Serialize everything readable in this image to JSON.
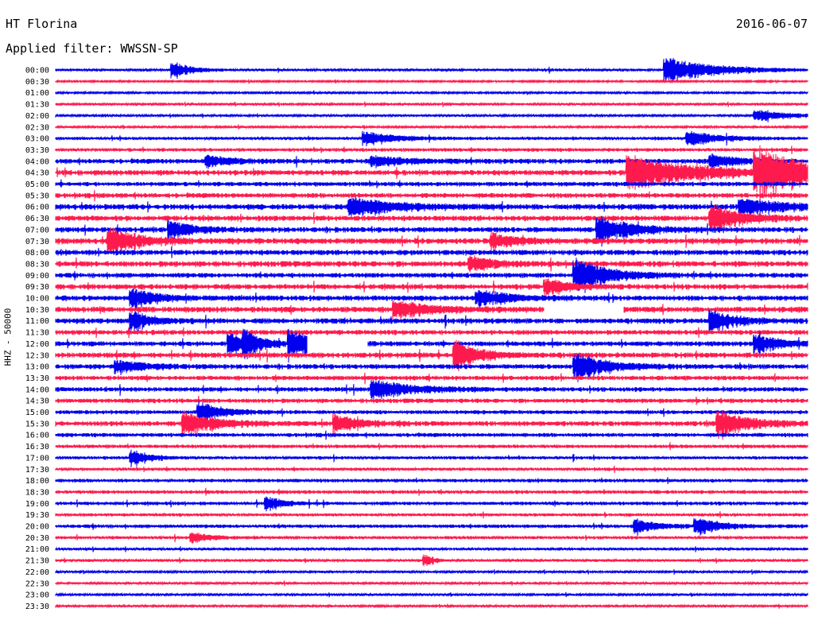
{
  "header": {
    "station": "HT Florina",
    "date": "2016-06-07",
    "filter": "Applied filter: WWSSN-SP"
  },
  "chart_data": {
    "type": "line",
    "title": "HT Florina",
    "ylabel": "HHZ - 50000",
    "trace_colors": [
      "#0000ee",
      "#ff1a4d"
    ],
    "rows": [
      "00:00",
      "00:30",
      "01:00",
      "01:30",
      "02:00",
      "02:30",
      "03:00",
      "03:30",
      "04:00",
      "04:30",
      "05:00",
      "05:30",
      "06:00",
      "06:30",
      "07:00",
      "07:30",
      "08:00",
      "08:30",
      "09:00",
      "09:30",
      "10:00",
      "10:30",
      "11:00",
      "11:30",
      "12:00",
      "12:30",
      "13:00",
      "13:30",
      "14:00",
      "14:30",
      "15:00",
      "15:30",
      "16:00",
      "16:30",
      "17:00",
      "17:30",
      "18:00",
      "18:30",
      "19:00",
      "19:30",
      "20:00",
      "20:30",
      "21:00",
      "21:30",
      "22:00",
      "22:30",
      "23:00",
      "23:30"
    ],
    "noise_level": [
      1.2,
      0.8,
      0.9,
      1.0,
      1.0,
      1.0,
      1.4,
      1.6,
      2.2,
      2.4,
      2.0,
      2.2,
      2.6,
      2.4,
      2.4,
      2.6,
      2.4,
      2.6,
      2.2,
      2.4,
      2.4,
      2.6,
      2.4,
      2.2,
      2.2,
      2.4,
      2.2,
      2.0,
      2.0,
      2.0,
      1.8,
      2.2,
      1.8,
      1.6,
      1.4,
      1.4,
      1.6,
      1.6,
      1.6,
      1.4,
      1.6,
      1.4,
      1.2,
      1.2,
      1.0,
      1.0,
      1.0,
      1.0
    ],
    "events": [
      {
        "row": 0,
        "x": 0.155,
        "amp": 9,
        "dur": 0.02
      },
      {
        "row": 0,
        "x": 0.81,
        "amp": 14,
        "dur": 0.06
      },
      {
        "row": 4,
        "x": 0.93,
        "amp": 6,
        "dur": 0.04
      },
      {
        "row": 6,
        "x": 0.41,
        "amp": 7,
        "dur": 0.04
      },
      {
        "row": 6,
        "x": 0.84,
        "amp": 8,
        "dur": 0.04
      },
      {
        "row": 8,
        "x": 0.2,
        "amp": 6,
        "dur": 0.03
      },
      {
        "row": 8,
        "x": 0.42,
        "amp": 5,
        "dur": 0.05
      },
      {
        "row": 8,
        "x": 0.87,
        "amp": 7,
        "dur": 0.03
      },
      {
        "row": 9,
        "x": 0.76,
        "amp": 20,
        "dur": 0.08
      },
      {
        "row": 9,
        "x": 0.93,
        "amp": 24,
        "dur": 0.08
      },
      {
        "row": 12,
        "x": 0.39,
        "amp": 10,
        "dur": 0.05
      },
      {
        "row": 12,
        "x": 0.91,
        "amp": 8,
        "dur": 0.06
      },
      {
        "row": 13,
        "x": 0.87,
        "amp": 14,
        "dur": 0.04
      },
      {
        "row": 14,
        "x": 0.15,
        "amp": 9,
        "dur": 0.03
      },
      {
        "row": 14,
        "x": 0.72,
        "amp": 14,
        "dur": 0.04
      },
      {
        "row": 15,
        "x": 0.07,
        "amp": 14,
        "dur": 0.04
      },
      {
        "row": 15,
        "x": 0.58,
        "amp": 8,
        "dur": 0.03
      },
      {
        "row": 17,
        "x": 0.55,
        "amp": 8,
        "dur": 0.03
      },
      {
        "row": 18,
        "x": 0.69,
        "amp": 18,
        "dur": 0.04
      },
      {
        "row": 19,
        "x": 0.65,
        "amp": 8,
        "dur": 0.03
      },
      {
        "row": 20,
        "x": 0.1,
        "amp": 10,
        "dur": 0.03
      },
      {
        "row": 20,
        "x": 0.56,
        "amp": 9,
        "dur": 0.04
      },
      {
        "row": 21,
        "x": 0.45,
        "amp": 10,
        "dur": 0.04
      },
      {
        "row": 22,
        "x": 0.1,
        "amp": 12,
        "dur": 0.02
      },
      {
        "row": 22,
        "x": 0.87,
        "amp": 11,
        "dur": 0.03
      },
      {
        "row": 24,
        "x": 0.23,
        "amp": 12,
        "dur": 0.02
      },
      {
        "row": 24,
        "x": 0.25,
        "amp": 12,
        "dur": 0.02
      },
      {
        "row": 24,
        "x": 0.31,
        "amp": 14,
        "dur": 0.03
      },
      {
        "row": 24,
        "x": 0.93,
        "amp": 10,
        "dur": 0.03
      },
      {
        "row": 25,
        "x": 0.53,
        "amp": 16,
        "dur": 0.03
      },
      {
        "row": 26,
        "x": 0.08,
        "amp": 6,
        "dur": 0.04
      },
      {
        "row": 26,
        "x": 0.69,
        "amp": 14,
        "dur": 0.04
      },
      {
        "row": 28,
        "x": 0.42,
        "amp": 10,
        "dur": 0.05
      },
      {
        "row": 30,
        "x": 0.19,
        "amp": 11,
        "dur": 0.03
      },
      {
        "row": 31,
        "x": 0.17,
        "amp": 12,
        "dur": 0.04
      },
      {
        "row": 31,
        "x": 0.37,
        "amp": 10,
        "dur": 0.03
      },
      {
        "row": 31,
        "x": 0.88,
        "amp": 14,
        "dur": 0.04
      },
      {
        "row": 34,
        "x": 0.1,
        "amp": 9,
        "dur": 0.02
      },
      {
        "row": 38,
        "x": 0.28,
        "amp": 7,
        "dur": 0.02
      },
      {
        "row": 40,
        "x": 0.77,
        "amp": 7,
        "dur": 0.03
      },
      {
        "row": 40,
        "x": 0.85,
        "amp": 9,
        "dur": 0.03
      },
      {
        "row": 41,
        "x": 0.18,
        "amp": 6,
        "dur": 0.02
      },
      {
        "row": 43,
        "x": 0.49,
        "amp": 6,
        "dur": 0.01
      }
    ],
    "gaps": [
      {
        "row": 21,
        "x0": 0.65,
        "x1": 0.755
      },
      {
        "row": 24,
        "x0": 0.335,
        "x1": 0.415
      }
    ]
  }
}
